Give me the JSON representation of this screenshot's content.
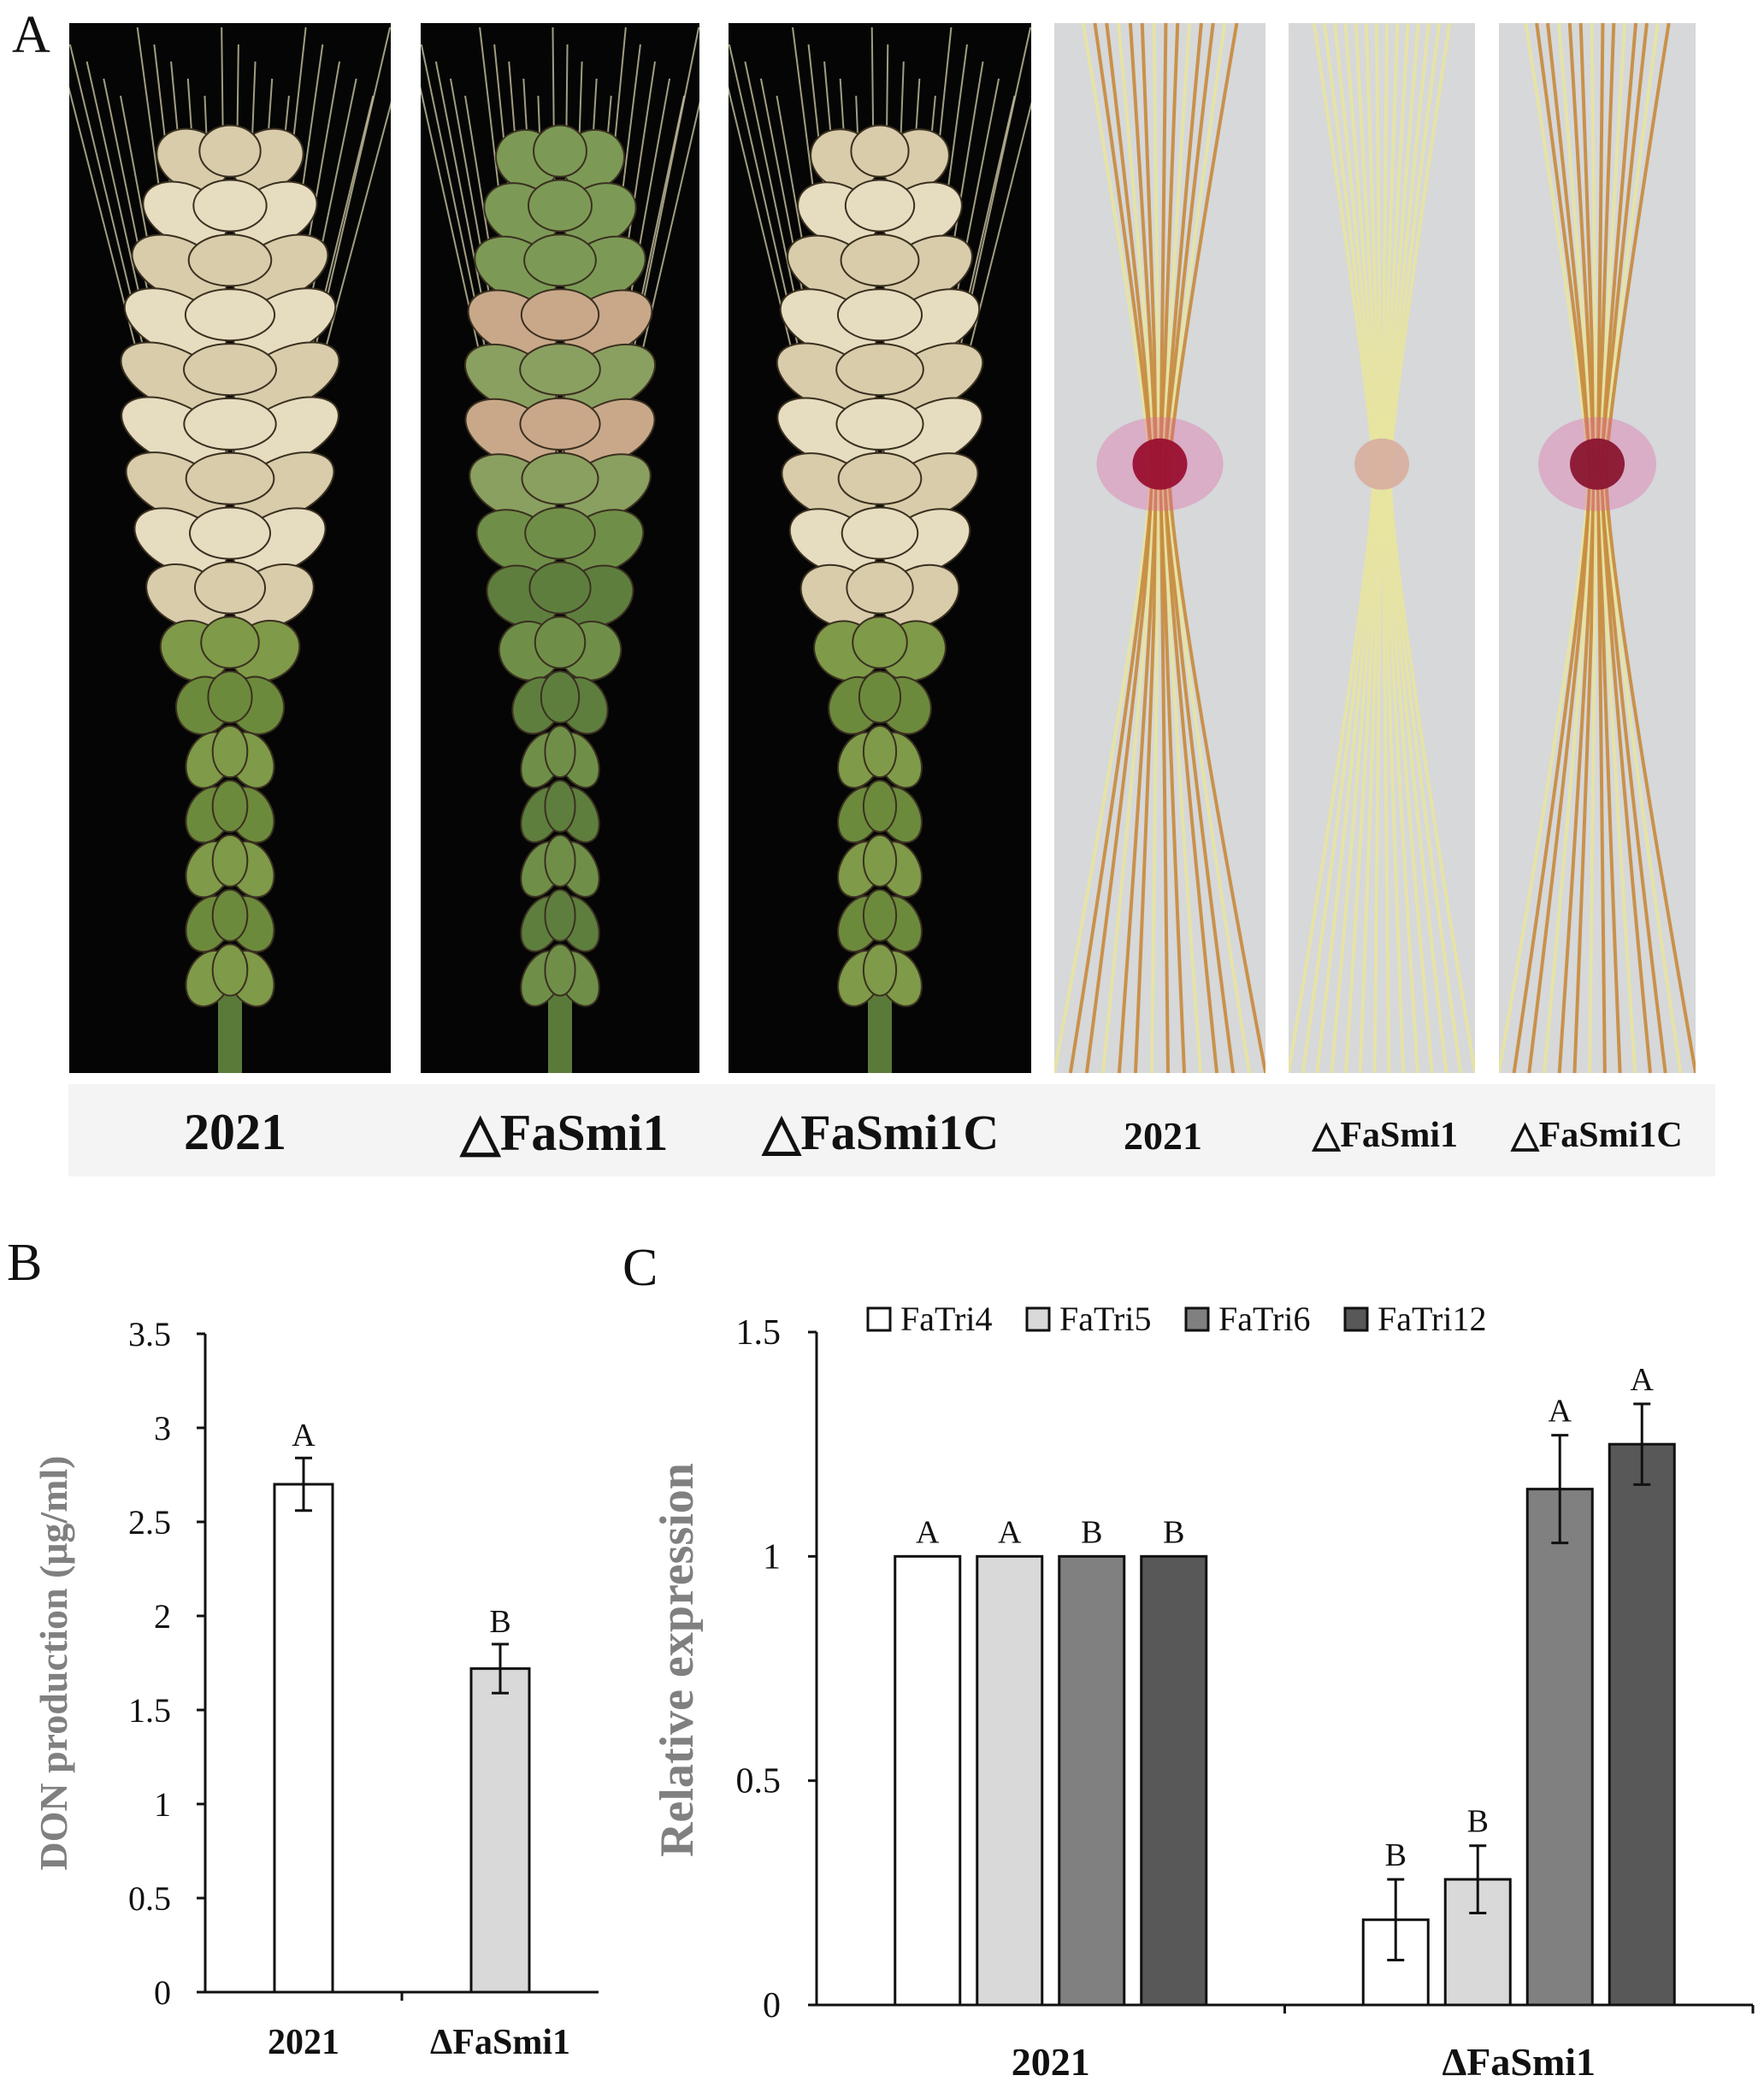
{
  "panels": {
    "a": {
      "letter": "A",
      "photos": [
        {
          "label": "2021",
          "kind": "spike",
          "infection": "severe"
        },
        {
          "label": "△FaSmi1",
          "kind": "spike",
          "infection": "mild"
        },
        {
          "label": "△FaSmi1C",
          "kind": "spike",
          "infection": "severe"
        },
        {
          "label": "2021",
          "kind": "coleoptile",
          "lesion_color": "#9a1030"
        },
        {
          "label": "△FaSmi1",
          "kind": "coleoptile",
          "lesion_color": "#d8b0a0"
        },
        {
          "label": "△FaSmi1C",
          "kind": "coleoptile",
          "lesion_color": "#8a1530"
        }
      ]
    },
    "b": {
      "letter": "B"
    },
    "c": {
      "letter": "C"
    }
  },
  "chart_data": [
    {
      "type": "bar",
      "panel": "B",
      "ylabel": "DON production (μg/ml)",
      "categories": [
        "2021",
        "ΔFaSmi1"
      ],
      "values": [
        2.7,
        1.72
      ],
      "errors": [
        0.14,
        0.13
      ],
      "significance": [
        "A",
        "B"
      ],
      "bar_colors": [
        "#ffffff",
        "#d9d9d9"
      ],
      "ylim": [
        0,
        3.5
      ],
      "yticks": [
        "0",
        "0.5",
        "1",
        "1.5",
        "2",
        "2.5",
        "3",
        "3.5"
      ]
    },
    {
      "type": "bar",
      "panel": "C",
      "ylabel": "Relative expression",
      "categories": [
        "2021",
        "ΔFaSmi1"
      ],
      "series": [
        {
          "name": "FaTri4",
          "color": "#ffffff",
          "values": [
            1.0,
            0.19
          ],
          "errors": [
            0,
            0.09
          ],
          "significance": [
            "A",
            "B"
          ]
        },
        {
          "name": "FaTri5",
          "color": "#d9d9d9",
          "values": [
            1.0,
            0.28
          ],
          "errors": [
            0,
            0.075
          ],
          "significance": [
            "A",
            "B"
          ]
        },
        {
          "name": "FaTri6",
          "color": "#808080",
          "values": [
            1.0,
            1.15
          ],
          "errors": [
            0,
            0.12
          ],
          "significance": [
            "B",
            "A"
          ]
        },
        {
          "name": "FaTri12",
          "color": "#585858",
          "values": [
            1.0,
            1.25
          ],
          "errors": [
            0,
            0.09
          ],
          "significance": [
            "B",
            "A"
          ]
        }
      ],
      "ylim": [
        0,
        1.5
      ],
      "yticks": [
        "0",
        "0.5",
        "1",
        "1.5"
      ],
      "legend_position": "top"
    }
  ]
}
